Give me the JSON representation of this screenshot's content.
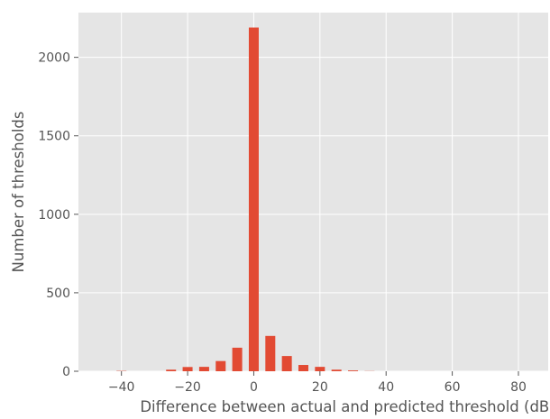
{
  "chart_data": {
    "type": "bar",
    "title": "",
    "xlabel": "Difference between actual and predicted threshold (dB)",
    "ylabel": "Number of thresholds",
    "xlim": [
      -53,
      89
    ],
    "ylim": [
      0,
      2285
    ],
    "grid": true,
    "x_ticks": [
      -40,
      -20,
      0,
      20,
      40,
      60,
      80
    ],
    "x_tick_labels": [
      "−40",
      "−20",
      "0",
      "20",
      "40",
      "60",
      "80"
    ],
    "y_ticks": [
      0,
      500,
      1000,
      1500,
      2000
    ],
    "y_tick_labels": [
      "0",
      "500",
      "1000",
      "1500",
      "2000"
    ],
    "bar_width": 3,
    "x": [
      -40,
      -35,
      -30,
      -25,
      -20,
      -15,
      -10,
      -5,
      0,
      5,
      10,
      15,
      20,
      25,
      30,
      35
    ],
    "values": [
      2,
      0,
      0,
      10,
      27,
      28,
      65,
      150,
      2190,
      225,
      97,
      40,
      28,
      10,
      5,
      1
    ],
    "colors": {
      "bar": "#E24A33",
      "panel": "#E5E5E5",
      "grid": "#FFFFFF",
      "text": "#555555"
    }
  }
}
